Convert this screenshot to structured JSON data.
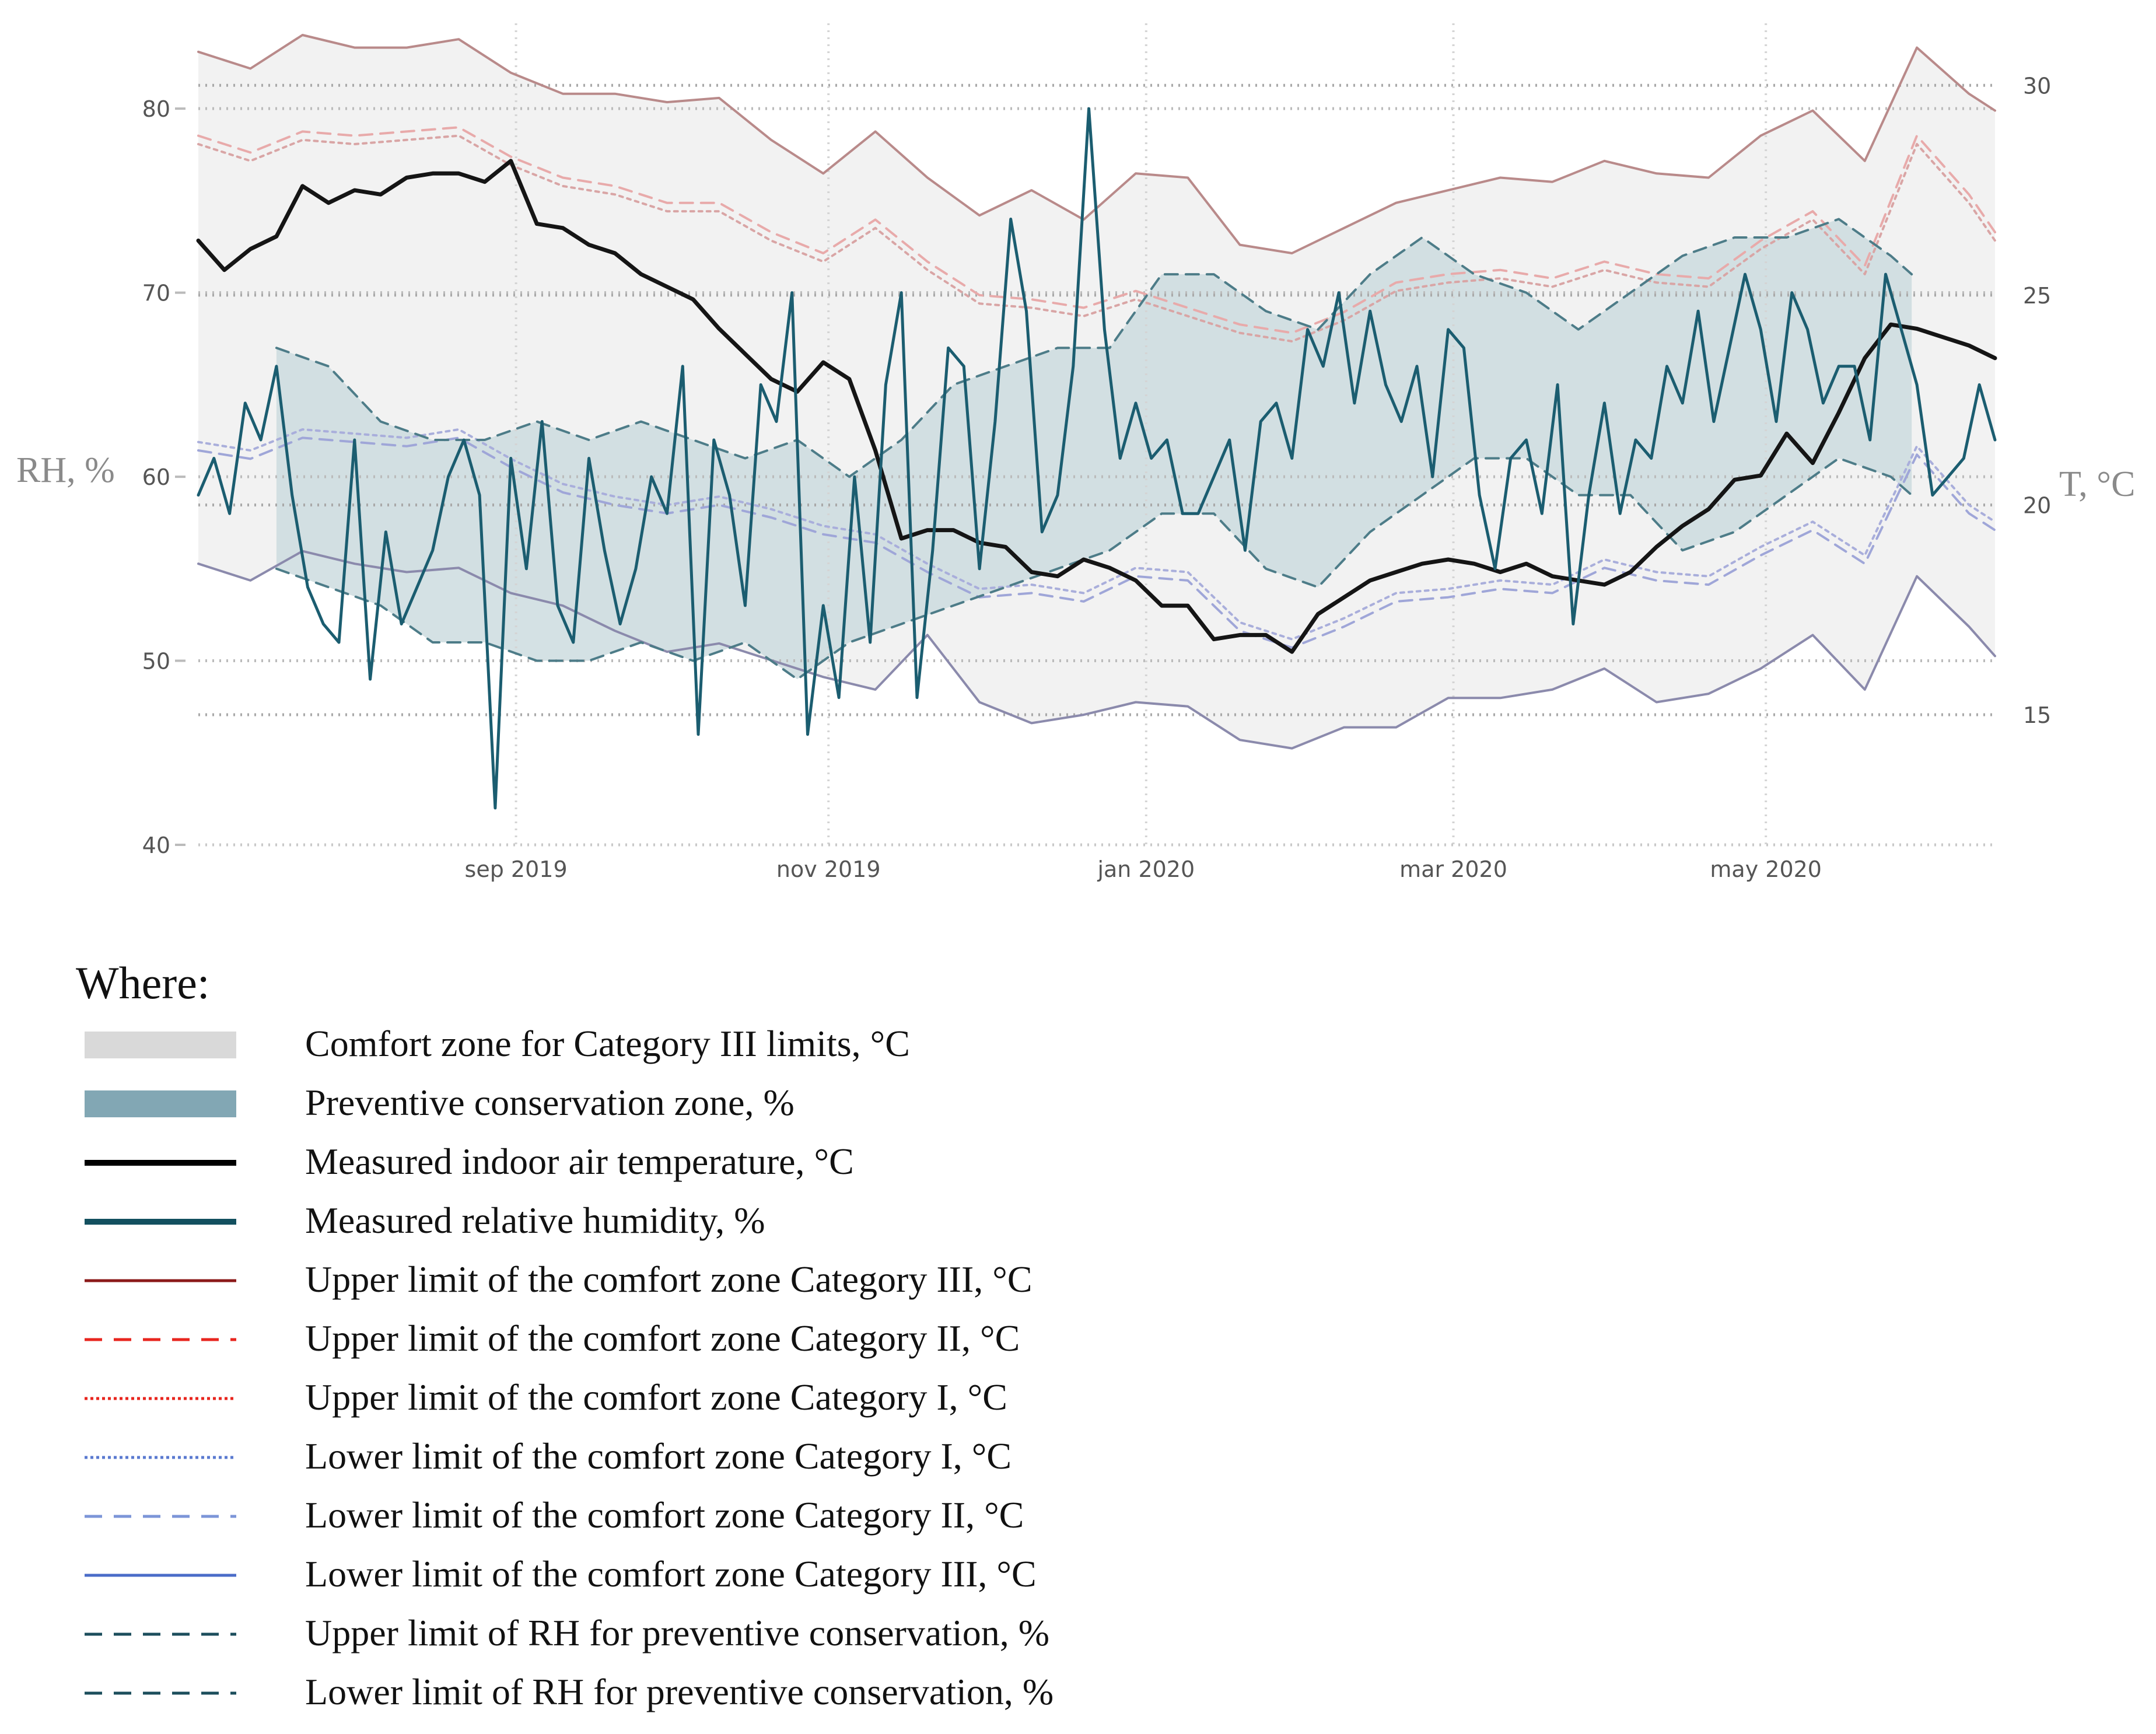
{
  "chart_data": {
    "type": "line",
    "y_left": {
      "label": "RH, %",
      "ticks": [
        40,
        50,
        60,
        70,
        80
      ],
      "range": [
        40,
        84
      ]
    },
    "y_right": {
      "label": "T, °C",
      "ticks": [
        15,
        20,
        25,
        30
      ],
      "range": [
        11.9,
        31.2
      ]
    },
    "x_axis": {
      "ticks": [
        "sep 2019",
        "nov 2019",
        "jan 2020",
        "mar 2020",
        "may 2020"
      ],
      "range_days": [
        0,
        345
      ],
      "tick_days": [
        61,
        121,
        182,
        241,
        301
      ]
    },
    "series": [
      {
        "name": "Upper limit of the comfort zone Category III, °C",
        "axis": "T",
        "color": "#b98a8a",
        "dash": "solid",
        "x": [
          0,
          10,
          20,
          30,
          40,
          50,
          60,
          70,
          80,
          90,
          100,
          110,
          120,
          130,
          140,
          150,
          160,
          170,
          180,
          190,
          200,
          210,
          220,
          230,
          240,
          250,
          260,
          270,
          280,
          290,
          300,
          310,
          320,
          330,
          340,
          345
        ],
        "y": [
          30.8,
          30.4,
          31.2,
          30.9,
          30.9,
          31.1,
          30.3,
          29.8,
          29.8,
          29.6,
          29.7,
          28.7,
          27.9,
          28.9,
          27.8,
          26.9,
          27.5,
          26.8,
          27.9,
          27.8,
          26.2,
          26.0,
          26.6,
          27.2,
          27.5,
          27.8,
          27.7,
          28.2,
          27.9,
          27.8,
          28.8,
          29.4,
          28.2,
          30.9,
          29.8,
          29.4
        ]
      },
      {
        "name": "Upper limit of the comfort zone Category II, °C",
        "axis": "T",
        "color": "#e8aaaa",
        "dash": "dashed",
        "x": [
          0,
          10,
          20,
          30,
          40,
          50,
          60,
          70,
          80,
          90,
          100,
          110,
          120,
          130,
          140,
          150,
          160,
          170,
          180,
          190,
          200,
          210,
          220,
          230,
          240,
          250,
          260,
          270,
          280,
          290,
          300,
          310,
          320,
          330,
          340,
          345
        ],
        "y": [
          28.8,
          28.4,
          28.9,
          28.8,
          28.9,
          29.0,
          28.3,
          27.8,
          27.6,
          27.2,
          27.2,
          26.5,
          26.0,
          26.8,
          25.8,
          25.0,
          24.9,
          24.7,
          25.1,
          24.7,
          24.3,
          24.1,
          24.6,
          25.3,
          25.5,
          25.6,
          25.4,
          25.8,
          25.5,
          25.4,
          26.3,
          27.0,
          25.7,
          28.8,
          27.4,
          26.5
        ]
      },
      {
        "name": "Upper limit of the comfort zone Category I, °C",
        "axis": "T",
        "color": "#d9a5a5",
        "dash": "dotted",
        "x": [
          0,
          10,
          20,
          30,
          40,
          50,
          60,
          70,
          80,
          90,
          100,
          110,
          120,
          130,
          140,
          150,
          160,
          170,
          180,
          190,
          200,
          210,
          220,
          230,
          240,
          250,
          260,
          270,
          280,
          290,
          300,
          310,
          320,
          330,
          340,
          345
        ],
        "y": [
          28.6,
          28.2,
          28.7,
          28.6,
          28.7,
          28.8,
          28.1,
          27.6,
          27.4,
          27.0,
          27.0,
          26.3,
          25.8,
          26.6,
          25.6,
          24.8,
          24.7,
          24.5,
          24.9,
          24.5,
          24.1,
          23.9,
          24.4,
          25.1,
          25.3,
          25.4,
          25.2,
          25.6,
          25.3,
          25.2,
          26.1,
          26.8,
          25.5,
          28.6,
          27.2,
          26.3
        ]
      },
      {
        "name": "Lower limit of the comfort zone Category I, °C",
        "axis": "T",
        "color": "#a9aedb",
        "dash": "dotted",
        "x": [
          0,
          10,
          20,
          30,
          40,
          50,
          60,
          70,
          80,
          90,
          100,
          110,
          120,
          130,
          140,
          150,
          160,
          170,
          180,
          190,
          200,
          210,
          220,
          230,
          240,
          250,
          260,
          270,
          280,
          290,
          300,
          310,
          320,
          330,
          340,
          345
        ],
        "y": [
          21.5,
          21.3,
          21.8,
          21.7,
          21.6,
          21.8,
          21.1,
          20.5,
          20.2,
          20.0,
          20.2,
          19.9,
          19.5,
          19.3,
          18.6,
          18.0,
          18.1,
          17.9,
          18.5,
          18.4,
          17.2,
          16.8,
          17.3,
          17.9,
          18.0,
          18.2,
          18.1,
          18.7,
          18.4,
          18.3,
          19.0,
          19.6,
          18.8,
          21.4,
          20.0,
          19.6
        ]
      },
      {
        "name": "Lower limit of the comfort zone Category II, °C",
        "axis": "T",
        "color": "#9fa6d8",
        "dash": "dashed",
        "x": [
          0,
          10,
          20,
          30,
          40,
          50,
          60,
          70,
          80,
          90,
          100,
          110,
          120,
          130,
          140,
          150,
          160,
          170,
          180,
          190,
          200,
          210,
          220,
          230,
          240,
          250,
          260,
          270,
          280,
          290,
          300,
          310,
          320,
          330,
          340,
          345
        ],
        "y": [
          21.3,
          21.1,
          21.6,
          21.5,
          21.4,
          21.6,
          20.9,
          20.3,
          20.0,
          19.8,
          20.0,
          19.7,
          19.3,
          19.1,
          18.4,
          17.8,
          17.9,
          17.7,
          18.3,
          18.2,
          17.0,
          16.6,
          17.1,
          17.7,
          17.8,
          18.0,
          17.9,
          18.5,
          18.2,
          18.1,
          18.8,
          19.4,
          18.6,
          21.2,
          19.8,
          19.4
        ]
      },
      {
        "name": "Lower limit of the comfort zone Category III, °C",
        "axis": "T",
        "color": "#8b8aac",
        "dash": "solid",
        "x": [
          0,
          10,
          20,
          30,
          40,
          50,
          60,
          70,
          80,
          90,
          100,
          110,
          120,
          130,
          140,
          150,
          160,
          170,
          180,
          190,
          200,
          210,
          220,
          230,
          240,
          250,
          260,
          270,
          280,
          290,
          300,
          310,
          320,
          330,
          340,
          345
        ],
        "y": [
          18.6,
          18.2,
          18.9,
          18.6,
          18.4,
          18.5,
          17.9,
          17.6,
          17.0,
          16.5,
          16.7,
          16.3,
          15.9,
          15.6,
          16.9,
          15.3,
          14.8,
          15.0,
          15.3,
          15.2,
          14.4,
          14.2,
          14.7,
          14.7,
          15.4,
          15.4,
          15.6,
          16.1,
          15.3,
          15.5,
          16.1,
          16.9,
          15.6,
          18.3,
          17.1,
          16.4
        ]
      },
      {
        "name": "Upper limit of RH for preventive conservation, %",
        "axis": "RH",
        "color": "#4d7c88",
        "dash": "dashed",
        "x": [
          15,
          25,
          35,
          45,
          55,
          65,
          75,
          85,
          95,
          105,
          115,
          125,
          135,
          145,
          155,
          165,
          175,
          185,
          195,
          205,
          215,
          225,
          235,
          245,
          255,
          265,
          275,
          285,
          295,
          305,
          315,
          325,
          329
        ],
        "y": [
          67,
          66,
          63,
          62,
          62,
          63,
          62,
          63,
          62,
          61,
          62,
          60,
          62,
          65,
          66,
          67,
          67,
          71,
          71,
          69,
          68,
          71,
          73,
          71,
          70,
          68,
          70,
          72,
          73,
          73,
          74,
          72,
          71
        ]
      },
      {
        "name": "Lower limit of RH for preventive conservation, %",
        "axis": "RH",
        "color": "#4d7c88",
        "dash": "dashed",
        "x": [
          15,
          25,
          35,
          45,
          55,
          65,
          75,
          85,
          95,
          105,
          115,
          125,
          135,
          145,
          155,
          165,
          175,
          185,
          195,
          205,
          215,
          225,
          235,
          245,
          255,
          265,
          275,
          285,
          295,
          305,
          315,
          325,
          329
        ],
        "y": [
          55,
          54,
          53,
          51,
          51,
          50,
          50,
          51,
          50,
          51,
          49,
          51,
          52,
          53,
          54,
          55,
          56,
          58,
          58,
          55,
          54,
          57,
          59,
          61,
          61,
          59,
          59,
          56,
          57,
          59,
          61,
          60,
          59
        ]
      },
      {
        "name": "Measured indoor air temperature, °C",
        "axis": "T",
        "color": "#151515",
        "dash": "solid",
        "x": [
          0,
          5,
          10,
          15,
          20,
          25,
          30,
          35,
          40,
          45,
          50,
          55,
          60,
          65,
          70,
          75,
          80,
          85,
          90,
          95,
          100,
          105,
          110,
          115,
          120,
          125,
          130,
          135,
          140,
          145,
          150,
          155,
          160,
          165,
          170,
          175,
          180,
          185,
          190,
          195,
          200,
          205,
          210,
          215,
          220,
          225,
          230,
          235,
          240,
          245,
          250,
          255,
          260,
          265,
          270,
          275,
          280,
          285,
          290,
          295,
          300,
          305,
          310,
          315,
          320,
          325,
          330,
          335,
          340,
          345
        ],
        "y": [
          26.3,
          25.6,
          26.1,
          26.4,
          27.6,
          27.2,
          27.5,
          27.4,
          27.8,
          27.9,
          27.9,
          27.7,
          28.2,
          26.7,
          26.6,
          26.2,
          26.0,
          25.5,
          25.2,
          24.9,
          24.2,
          23.6,
          23.0,
          22.7,
          23.4,
          23.0,
          21.3,
          19.2,
          19.4,
          19.4,
          19.1,
          19.0,
          18.4,
          18.3,
          18.7,
          18.5,
          18.2,
          17.6,
          17.6,
          16.8,
          16.9,
          16.9,
          16.5,
          17.4,
          17.8,
          18.2,
          18.4,
          18.6,
          18.7,
          18.6,
          18.4,
          18.6,
          18.3,
          18.2,
          18.1,
          18.4,
          19.0,
          19.5,
          19.9,
          20.6,
          20.7,
          21.7,
          21.0,
          22.2,
          23.5,
          24.3,
          24.2,
          24.0,
          23.8,
          23.5
        ]
      },
      {
        "name": "Measured relative humidity, %",
        "axis": "RH",
        "color": "#1b5d70",
        "dash": "solid",
        "x": [
          0,
          3,
          6,
          9,
          12,
          15,
          18,
          21,
          24,
          27,
          30,
          33,
          36,
          39,
          42,
          45,
          48,
          51,
          54,
          57,
          60,
          63,
          66,
          69,
          72,
          75,
          78,
          81,
          84,
          87,
          90,
          93,
          96,
          99,
          102,
          105,
          108,
          111,
          114,
          117,
          120,
          123,
          126,
          129,
          132,
          135,
          138,
          141,
          144,
          147,
          150,
          153,
          156,
          159,
          162,
          165,
          168,
          171,
          174,
          177,
          180,
          183,
          186,
          189,
          192,
          195,
          198,
          201,
          204,
          207,
          210,
          213,
          216,
          219,
          222,
          225,
          228,
          231,
          234,
          237,
          240,
          243,
          246,
          249,
          252,
          255,
          258,
          261,
          264,
          267,
          270,
          273,
          276,
          279,
          282,
          285,
          288,
          291,
          294,
          297,
          300,
          303,
          306,
          309,
          312,
          315,
          318,
          321,
          324,
          327,
          330,
          333,
          336,
          339,
          342,
          345
        ],
        "y": [
          59,
          61,
          58,
          64,
          62,
          66,
          59,
          54,
          52,
          51,
          62,
          49,
          57,
          52,
          54,
          56,
          60,
          62,
          59,
          42,
          61,
          55,
          63,
          53,
          51,
          61,
          56,
          52,
          55,
          60,
          58,
          66,
          46,
          62,
          59,
          53,
          65,
          63,
          70,
          46,
          53,
          48,
          60,
          51,
          65,
          70,
          48,
          56,
          67,
          66,
          55,
          63,
          74,
          69,
          57,
          59,
          66,
          80,
          68,
          61,
          64,
          61,
          62,
          58,
          58,
          60,
          62,
          56,
          63,
          64,
          61,
          68,
          66,
          70,
          64,
          69,
          65,
          63,
          66,
          60,
          68,
          67,
          59,
          55,
          61,
          62,
          58,
          65,
          52,
          59,
          64,
          58,
          62,
          61,
          66,
          64,
          69,
          63,
          67,
          71,
          68,
          63,
          70,
          68,
          64,
          66,
          66,
          62,
          71,
          68,
          65,
          59,
          60,
          61,
          65,
          62
        ]
      }
    ],
    "legend_title": "Where:",
    "legend": [
      {
        "label": "Comfort zone for Category III limits, °C",
        "swatch": "band",
        "color": "#d9d9d9"
      },
      {
        "label": "Preventive conservation zone, %",
        "swatch": "band",
        "color": "#82a7b4"
      },
      {
        "label": "Measured indoor air temperature, °C",
        "swatch": "line",
        "color": "#000000",
        "dash": "solid"
      },
      {
        "label": "Measured relative humidity, %",
        "swatch": "line",
        "color": "#13505f",
        "dash": "solid"
      },
      {
        "label": "Upper limit of the comfort zone Category III, °C",
        "swatch": "line",
        "color": "#8b1a1a",
        "dash": "solid"
      },
      {
        "label": "Upper limit of the comfort zone Category II, °C",
        "swatch": "line",
        "color": "#e8261f",
        "dash": "dashed"
      },
      {
        "label": "Upper limit of the comfort zone Category I, °C",
        "swatch": "line",
        "color": "#e8261f",
        "dash": "dotted"
      },
      {
        "label": "Lower limit of the comfort zone Category I, °C",
        "swatch": "line",
        "color": "#5a7ad0",
        "dash": "dotted"
      },
      {
        "label": "Lower limit of the comfort zone Category II, °C",
        "swatch": "line",
        "color": "#7c95d8",
        "dash": "dashed"
      },
      {
        "label": "Lower limit of the comfort zone Category III, °C",
        "swatch": "line",
        "color": "#4a6cc8",
        "dash": "solid"
      },
      {
        "label": "Upper limit of RH for preventive conservation, %",
        "swatch": "line",
        "color": "#1c4e5c",
        "dash": "dashed"
      },
      {
        "label": "Lower limit of RH for preventive conservation, %",
        "swatch": "line",
        "color": "#1c4e5c",
        "dash": "dashed"
      }
    ]
  }
}
